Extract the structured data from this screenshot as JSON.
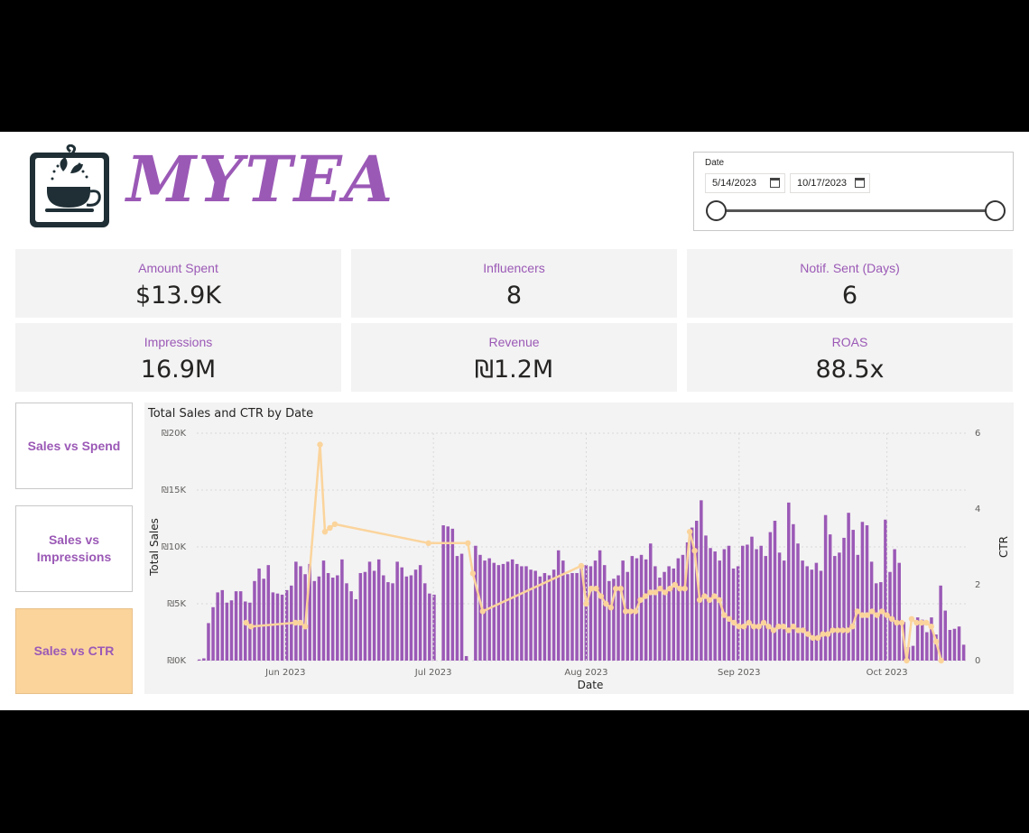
{
  "brand": {
    "name": "MYTEA",
    "logo_icon": "tea-cup-logo-icon"
  },
  "slicer": {
    "title": "Date",
    "start": "5/14/2023",
    "end": "10/17/2023"
  },
  "kpis": [
    {
      "label": "Amount Spent",
      "value": "$13.9K"
    },
    {
      "label": "Influencers",
      "value": "8"
    },
    {
      "label": "Notif. Sent (Days)",
      "value": "6"
    },
    {
      "label": "Impressions",
      "value": "16.9M"
    },
    {
      "label": "Revenue",
      "value": "₪1.2M"
    },
    {
      "label": "ROAS",
      "value": "88.5x"
    }
  ],
  "nav": [
    {
      "label": "Sales vs Spend",
      "active": false
    },
    {
      "label": "Sales vs Impressions",
      "active": false
    },
    {
      "label": "Sales vs CTR",
      "active": true
    }
  ],
  "colors": {
    "accent": "#9b59b6",
    "bar": "#9b59b6",
    "line": "#fbd49c",
    "active_nav": "#fbd49c",
    "kpi_bg": "#f3f3f3"
  },
  "chart_data": {
    "type": "bar",
    "title": "Total Sales and CTR by Date",
    "xlabel": "Date",
    "ylabel": "Total Sales",
    "y2label": "CTR",
    "ylim": [
      0,
      20000
    ],
    "y2lim": [
      0,
      6
    ],
    "yticks": [
      "₪0K",
      "₪5K",
      "₪10K",
      "₪15K",
      "₪20K"
    ],
    "y2ticks": [
      "0",
      "2",
      "4",
      "6"
    ],
    "xticks": [
      "Jun 2023",
      "Jul 2023",
      "Aug 2023",
      "Sep 2023",
      "Oct 2023"
    ],
    "x_start": "2023-05-14",
    "x_end": "2023-10-17",
    "grid": true,
    "series": [
      {
        "name": "Total Sales",
        "type": "bar",
        "values": [
          100,
          200,
          3300,
          4700,
          6000,
          6200,
          5100,
          5300,
          6100,
          6100,
          5200,
          5100,
          7000,
          8100,
          7200,
          8400,
          6000,
          5900,
          5800,
          6200,
          6600,
          8700,
          8300,
          7600,
          8500,
          7000,
          7400,
          8800,
          7700,
          7300,
          7500,
          8900,
          6800,
          6100,
          5400,
          7700,
          7800,
          8700,
          7900,
          8900,
          7500,
          6900,
          6800,
          8700,
          8200,
          7400,
          7500,
          8000,
          8400,
          6800,
          5900,
          5800,
          0,
          11900,
          11800,
          11600,
          9200,
          9400,
          400,
          0,
          10100,
          9300,
          8800,
          9000,
          8600,
          8400,
          8500,
          8700,
          8900,
          8500,
          8300,
          8300,
          8000,
          7900,
          7400,
          7700,
          7500,
          8000,
          9700,
          8800,
          7600,
          7700,
          7700,
          8100,
          8400,
          8300,
          8800,
          9700,
          8400,
          7000,
          7200,
          7500,
          8800,
          7800,
          9200,
          9000,
          9300,
          8900,
          10300,
          8300,
          7300,
          7800,
          8300,
          8100,
          9000,
          9300,
          10400,
          11700,
          12300,
          14100,
          11000,
          9900,
          9600,
          8800,
          9800,
          10100,
          8100,
          8300,
          10100,
          10200,
          10900,
          9800,
          10100,
          9200,
          11300,
          12300,
          9500,
          8800,
          13900,
          12000,
          10300,
          8800,
          8300,
          8000,
          8600,
          7900,
          12800,
          11100,
          9200,
          9500,
          10800,
          13000,
          11500,
          9300,
          12200,
          11900,
          8700,
          6800,
          6900,
          12400,
          7800,
          9800,
          8600,
          3400,
          1200,
          1300,
          3800,
          3600,
          2500,
          3800,
          2300,
          6600,
          4400,
          2700,
          2800,
          3000,
          1400
        ]
      },
      {
        "name": "CTR",
        "type": "line",
        "points": [
          [
            "2023-05-24",
            1.0
          ],
          [
            "2023-05-25",
            0.9
          ],
          [
            "2023-06-03",
            1.0
          ],
          [
            "2023-06-04",
            1.0
          ],
          [
            "2023-06-05",
            0.9
          ],
          [
            "2023-06-08",
            5.7
          ],
          [
            "2023-06-09",
            3.4
          ],
          [
            "2023-06-10",
            3.5
          ],
          [
            "2023-06-11",
            3.6
          ],
          [
            "2023-06-30",
            3.1
          ],
          [
            "2023-07-08",
            3.1
          ],
          [
            "2023-07-09",
            2.3
          ],
          [
            "2023-07-11",
            1.3
          ],
          [
            "2023-07-31",
            2.5
          ],
          [
            "2023-08-01",
            1.5
          ],
          [
            "2023-08-02",
            1.9
          ],
          [
            "2023-08-03",
            1.9
          ],
          [
            "2023-08-04",
            1.7
          ],
          [
            "2023-08-05",
            1.5
          ],
          [
            "2023-08-06",
            1.4
          ],
          [
            "2023-08-07",
            1.9
          ],
          [
            "2023-08-08",
            1.9
          ],
          [
            "2023-08-09",
            1.3
          ],
          [
            "2023-08-10",
            1.3
          ],
          [
            "2023-08-11",
            1.3
          ],
          [
            "2023-08-12",
            1.6
          ],
          [
            "2023-08-13",
            1.7
          ],
          [
            "2023-08-14",
            1.8
          ],
          [
            "2023-08-15",
            1.8
          ],
          [
            "2023-08-16",
            1.9
          ],
          [
            "2023-08-17",
            1.8
          ],
          [
            "2023-08-18",
            1.9
          ],
          [
            "2023-08-19",
            2.0
          ],
          [
            "2023-08-20",
            1.9
          ],
          [
            "2023-08-21",
            1.9
          ],
          [
            "2023-08-22",
            3.4
          ],
          [
            "2023-08-23",
            2.9
          ],
          [
            "2023-08-24",
            1.6
          ],
          [
            "2023-08-25",
            1.7
          ],
          [
            "2023-08-26",
            1.6
          ],
          [
            "2023-08-27",
            1.7
          ],
          [
            "2023-08-28",
            1.6
          ],
          [
            "2023-08-29",
            1.2
          ],
          [
            "2023-08-30",
            1.1
          ],
          [
            "2023-08-31",
            1.0
          ],
          [
            "2023-09-01",
            0.9
          ],
          [
            "2023-09-02",
            0.9
          ],
          [
            "2023-09-03",
            1.0
          ],
          [
            "2023-09-04",
            0.9
          ],
          [
            "2023-09-05",
            0.9
          ],
          [
            "2023-09-06",
            1.0
          ],
          [
            "2023-09-07",
            0.9
          ],
          [
            "2023-09-08",
            0.8
          ],
          [
            "2023-09-09",
            0.9
          ],
          [
            "2023-09-10",
            0.9
          ],
          [
            "2023-09-11",
            0.8
          ],
          [
            "2023-09-12",
            0.9
          ],
          [
            "2023-09-13",
            0.8
          ],
          [
            "2023-09-14",
            0.8
          ],
          [
            "2023-09-15",
            0.7
          ],
          [
            "2023-09-16",
            0.6
          ],
          [
            "2023-09-17",
            0.6
          ],
          [
            "2023-09-18",
            0.7
          ],
          [
            "2023-09-19",
            0.7
          ],
          [
            "2023-09-20",
            0.8
          ],
          [
            "2023-09-21",
            0.8
          ],
          [
            "2023-09-22",
            0.8
          ],
          [
            "2023-09-23",
            0.8
          ],
          [
            "2023-09-24",
            0.9
          ],
          [
            "2023-09-25",
            1.3
          ],
          [
            "2023-09-26",
            1.2
          ],
          [
            "2023-09-27",
            1.2
          ],
          [
            "2023-09-28",
            1.3
          ],
          [
            "2023-09-29",
            1.2
          ],
          [
            "2023-09-30",
            1.3
          ],
          [
            "2023-10-01",
            1.2
          ],
          [
            "2023-10-02",
            1.1
          ],
          [
            "2023-10-03",
            1.0
          ],
          [
            "2023-10-04",
            1.0
          ],
          [
            "2023-10-05",
            0.0
          ],
          [
            "2023-10-06",
            1.1
          ],
          [
            "2023-10-07",
            1.0
          ],
          [
            "2023-10-08",
            1.0
          ],
          [
            "2023-10-09",
            1.0
          ],
          [
            "2023-10-10",
            0.9
          ],
          [
            "2023-10-11",
            0.5
          ],
          [
            "2023-10-12",
            0.0
          ]
        ]
      }
    ]
  }
}
